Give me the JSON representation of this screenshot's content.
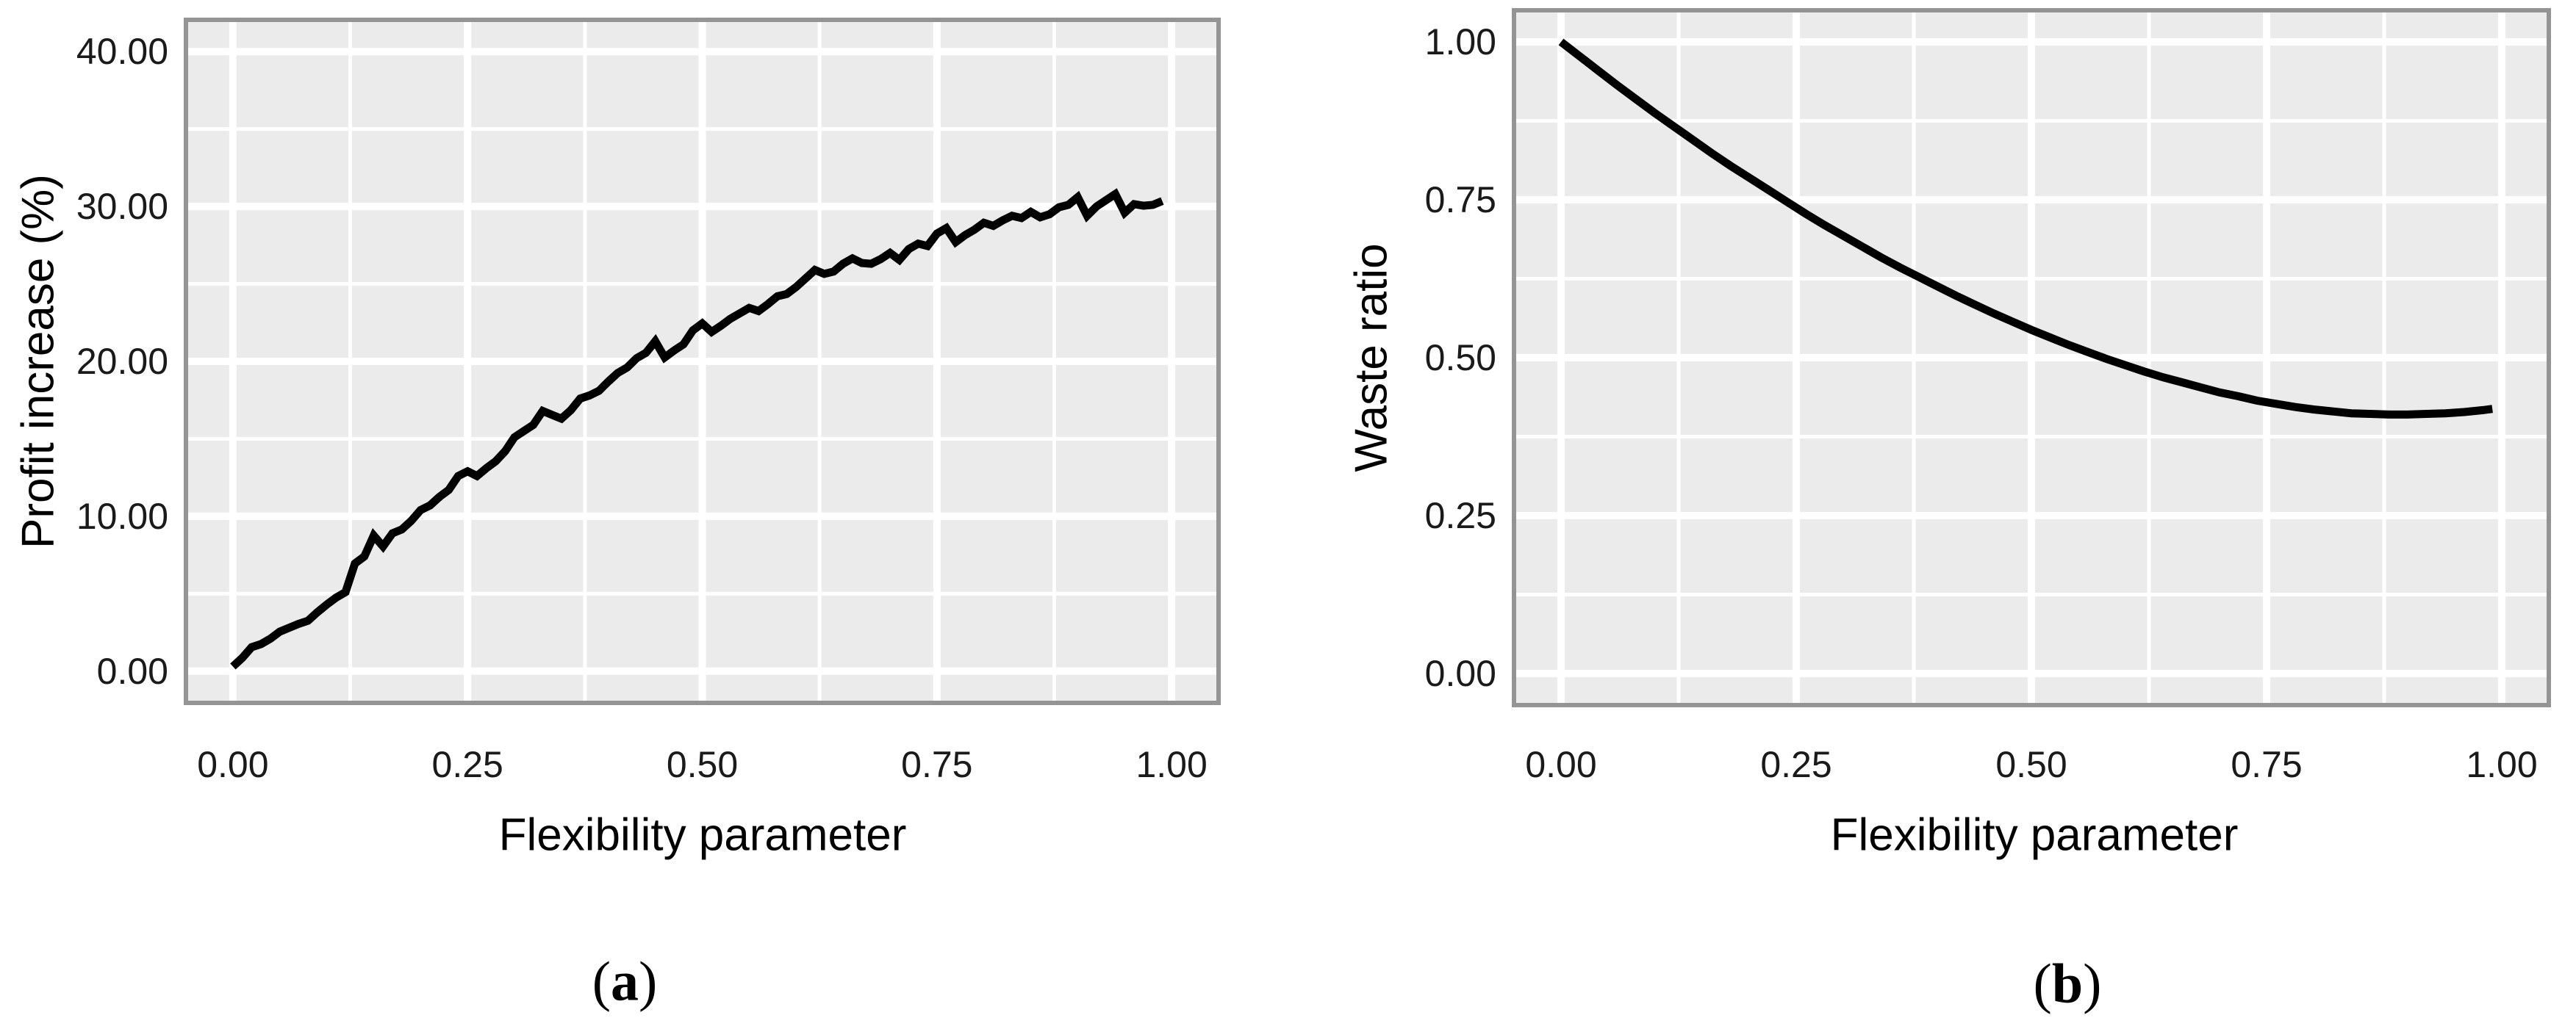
{
  "styles": {
    "panel_bg": "#ebebeb",
    "grid_color": "#ffffff",
    "line_color": "#000000",
    "border_color": "#949494",
    "tick_text_color": "#1a1a1a",
    "title_text_color": "#000000"
  },
  "chart_data": [
    {
      "type": "line",
      "panel": "a",
      "caption_open": "(",
      "caption_letter": "a",
      "caption_close": ")",
      "xlabel": "Flexibility parameter",
      "ylabel": "Profit increase (%)",
      "x_tick_labels": [
        "0.00",
        "0.25",
        "0.50",
        "0.75",
        "1.00"
      ],
      "x_tick_values": [
        0,
        0.25,
        0.5,
        0.75,
        1
      ],
      "y_tick_labels": [
        "0.00",
        "10.00",
        "20.00",
        "30.00",
        "40.00"
      ],
      "y_tick_values": [
        0,
        10,
        20,
        30,
        40
      ],
      "x_minor_values": [
        0.125,
        0.375,
        0.625,
        0.875
      ],
      "y_minor_values": [
        5,
        15,
        25,
        35
      ],
      "xlim": [
        -0.05,
        1.05
      ],
      "ylim": [
        -2.05,
        42.05
      ],
      "grid": true,
      "legend": "none",
      "series": [
        {
          "name": "profit_increase_pct",
          "x": [
            0.0,
            0.01,
            0.02,
            0.03,
            0.04,
            0.05,
            0.06,
            0.07,
            0.08,
            0.09,
            0.1,
            0.11,
            0.12,
            0.13,
            0.14,
            0.15,
            0.16,
            0.17,
            0.18,
            0.19,
            0.2,
            0.21,
            0.22,
            0.23,
            0.24,
            0.25,
            0.26,
            0.27,
            0.28,
            0.29,
            0.3,
            0.31,
            0.32,
            0.33,
            0.34,
            0.35,
            0.36,
            0.37,
            0.38,
            0.39,
            0.4,
            0.41,
            0.42,
            0.43,
            0.44,
            0.45,
            0.46,
            0.47,
            0.48,
            0.49,
            0.5,
            0.51,
            0.52,
            0.53,
            0.54,
            0.55,
            0.56,
            0.57,
            0.58,
            0.59,
            0.6,
            0.61,
            0.62,
            0.63,
            0.64,
            0.65,
            0.66,
            0.67,
            0.68,
            0.69,
            0.7,
            0.71,
            0.72,
            0.73,
            0.74,
            0.75,
            0.76,
            0.77,
            0.78,
            0.79,
            0.8,
            0.81,
            0.82,
            0.83,
            0.84,
            0.85,
            0.86,
            0.87,
            0.88,
            0.89,
            0.9,
            0.91,
            0.92,
            0.93,
            0.94,
            0.95,
            0.96,
            0.97,
            0.98,
            0.99
          ],
          "y": [
            0.3,
            0.85,
            1.55,
            1.75,
            2.1,
            2.55,
            2.8,
            3.05,
            3.25,
            3.8,
            4.3,
            4.75,
            5.1,
            6.95,
            7.4,
            8.75,
            8.05,
            8.9,
            9.15,
            9.7,
            10.4,
            10.7,
            11.25,
            11.7,
            12.6,
            12.9,
            12.6,
            13.1,
            13.55,
            14.2,
            15.1,
            15.5,
            15.9,
            16.8,
            16.55,
            16.3,
            16.85,
            17.6,
            17.8,
            18.1,
            18.7,
            19.25,
            19.6,
            20.2,
            20.55,
            21.3,
            20.25,
            20.7,
            21.1,
            22.0,
            22.45,
            21.9,
            22.3,
            22.75,
            23.1,
            23.45,
            23.25,
            23.7,
            24.2,
            24.35,
            24.8,
            25.35,
            25.9,
            25.65,
            25.8,
            26.3,
            26.65,
            26.35,
            26.3,
            26.6,
            27.0,
            26.55,
            27.25,
            27.6,
            27.45,
            28.25,
            28.6,
            27.7,
            28.15,
            28.5,
            28.95,
            28.75,
            29.1,
            29.4,
            29.25,
            29.65,
            29.3,
            29.5,
            29.95,
            30.1,
            30.6,
            29.4,
            30.0,
            30.4,
            30.8,
            29.6,
            30.15,
            30.05,
            30.1,
            30.35
          ]
        }
      ]
    },
    {
      "type": "line",
      "panel": "b",
      "caption_open": "(",
      "caption_letter": "b",
      "caption_close": ")",
      "xlabel": "Flexibility parameter",
      "ylabel": "Waste ratio",
      "x_tick_labels": [
        "0.00",
        "0.25",
        "0.50",
        "0.75",
        "1.00"
      ],
      "x_tick_values": [
        0,
        0.25,
        0.5,
        0.75,
        1
      ],
      "y_tick_labels": [
        "0.00",
        "0.25",
        "0.50",
        "0.75",
        "1.00"
      ],
      "y_tick_values": [
        0,
        0.25,
        0.5,
        0.75,
        1
      ],
      "x_minor_values": [
        0.125,
        0.375,
        0.625,
        0.875
      ],
      "y_minor_values": [
        0.125,
        0.375,
        0.625,
        0.875
      ],
      "xlim": [
        -0.05,
        1.05
      ],
      "ylim": [
        -0.05,
        1.05
      ],
      "grid": true,
      "legend": "none",
      "series": [
        {
          "name": "waste_ratio",
          "x": [
            0.0,
            0.02,
            0.04,
            0.06,
            0.08,
            0.1,
            0.12,
            0.14,
            0.16,
            0.18,
            0.2,
            0.22,
            0.24,
            0.26,
            0.28,
            0.3,
            0.32,
            0.34,
            0.36,
            0.38,
            0.4,
            0.42,
            0.44,
            0.46,
            0.48,
            0.5,
            0.52,
            0.54,
            0.56,
            0.58,
            0.6,
            0.62,
            0.64,
            0.66,
            0.68,
            0.7,
            0.72,
            0.74,
            0.76,
            0.78,
            0.8,
            0.82,
            0.84,
            0.86,
            0.88,
            0.9,
            0.92,
            0.94,
            0.96,
            0.98,
            0.99
          ],
          "y": [
            1.0,
            0.977,
            0.954,
            0.931,
            0.909,
            0.887,
            0.866,
            0.845,
            0.824,
            0.804,
            0.785,
            0.766,
            0.747,
            0.728,
            0.71,
            0.693,
            0.676,
            0.659,
            0.643,
            0.628,
            0.613,
            0.598,
            0.584,
            0.57,
            0.557,
            0.544,
            0.532,
            0.52,
            0.509,
            0.498,
            0.488,
            0.478,
            0.469,
            0.461,
            0.453,
            0.445,
            0.439,
            0.432,
            0.427,
            0.422,
            0.418,
            0.415,
            0.412,
            0.411,
            0.41,
            0.41,
            0.411,
            0.412,
            0.414,
            0.417,
            0.419
          ]
        }
      ]
    }
  ]
}
